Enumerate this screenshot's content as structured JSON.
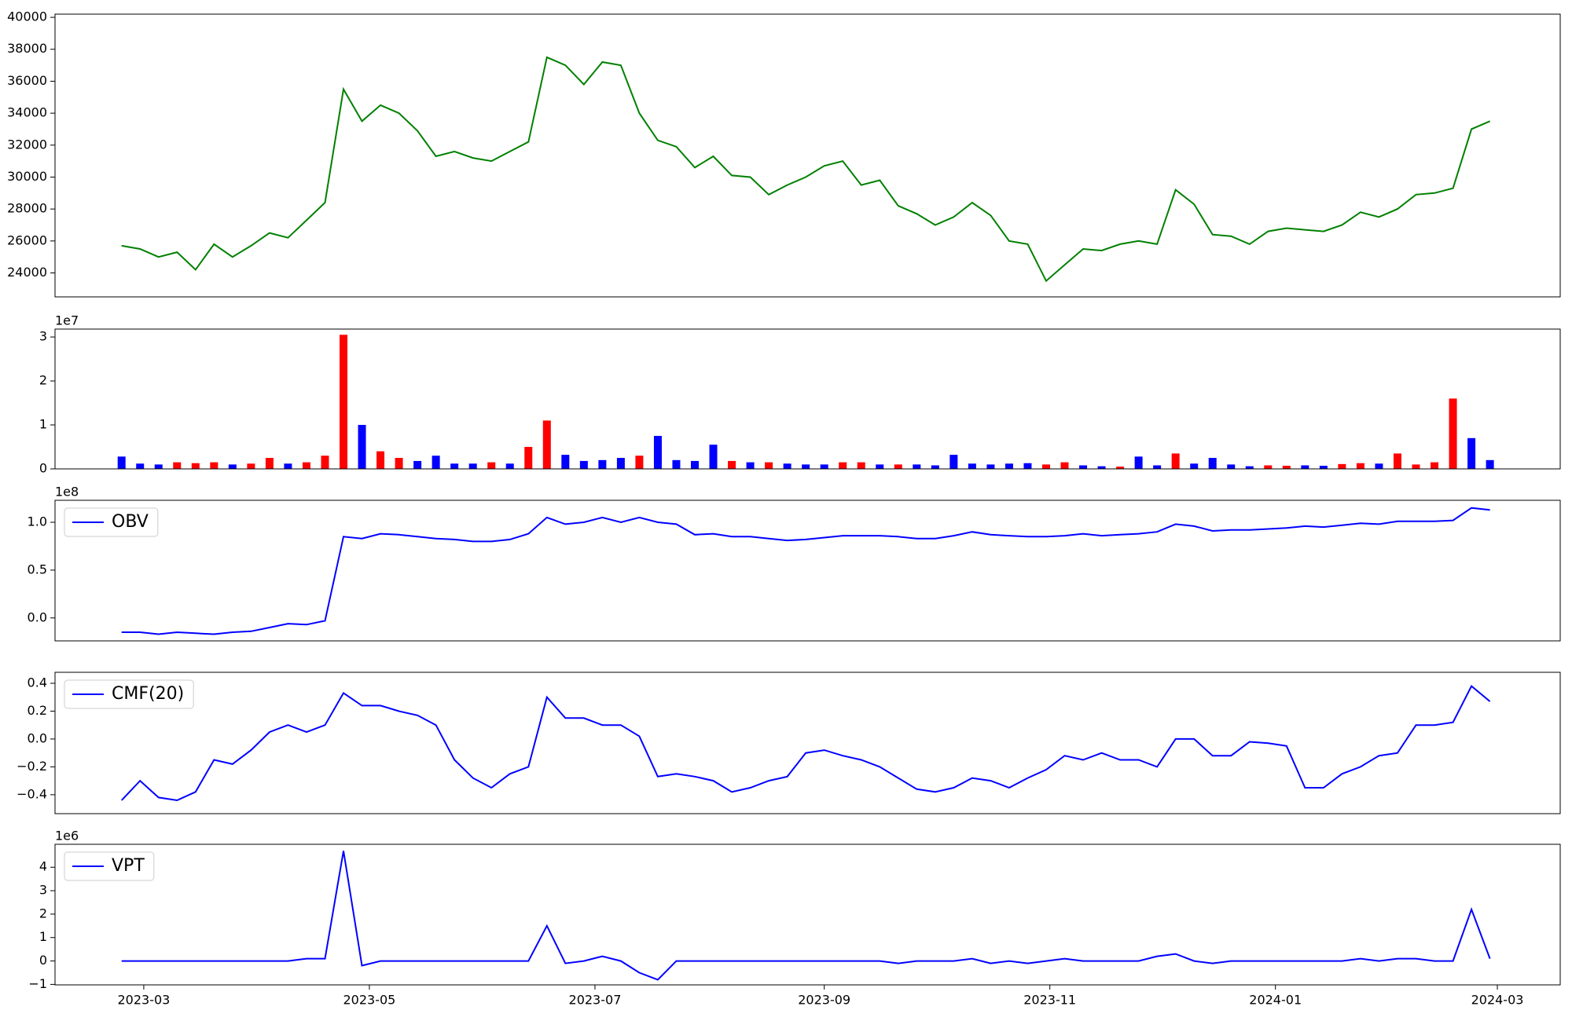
{
  "chart_data": [
    {
      "type": "line",
      "color": "#008000",
      "values": [
        25700,
        25500,
        25000,
        25300,
        24200,
        25800,
        25000,
        25700,
        26500,
        26200,
        27300,
        28400,
        35500,
        33500,
        34500,
        34000,
        32900,
        31300,
        31600,
        31200,
        31000,
        31600,
        32200,
        37500,
        37000,
        35800,
        37200,
        37000,
        34000,
        32300,
        31900,
        30600,
        31300,
        30100,
        30000,
        28900,
        29500,
        30000,
        30700,
        31000,
        29500,
        29800,
        28200,
        27700,
        27000,
        27500,
        28400,
        27600,
        26000,
        25800,
        23500,
        24500,
        25500,
        25400,
        25800,
        26000,
        25800,
        29200,
        28300,
        26400,
        26300,
        25800,
        26600,
        26800,
        26700,
        26600,
        27000,
        27800,
        27500,
        28000,
        28900,
        29000,
        29300,
        33000,
        33500
      ],
      "ylim": [
        22500,
        40200
      ],
      "yticks": [
        24000,
        26000,
        28000,
        30000,
        32000,
        34000,
        36000,
        38000,
        40000
      ]
    },
    {
      "type": "bar",
      "y_offset_label": "1e7",
      "values": [
        2800000,
        1200000,
        1000000,
        1500000,
        1300000,
        1500000,
        1000000,
        1200000,
        2500000,
        1200000,
        1500000,
        3000000,
        30500000,
        10000000,
        4000000,
        2500000,
        1800000,
        3000000,
        1200000,
        1200000,
        1500000,
        1200000,
        5000000,
        11000000,
        3200000,
        1800000,
        2000000,
        2500000,
        3000000,
        7500000,
        2000000,
        1800000,
        5500000,
        1800000,
        1500000,
        1500000,
        1200000,
        1000000,
        1000000,
        1500000,
        1500000,
        1000000,
        1000000,
        1000000,
        800000,
        3200000,
        1200000,
        1000000,
        1200000,
        1300000,
        1000000,
        1500000,
        800000,
        600000,
        500000,
        2800000,
        800000,
        3500000,
        1200000,
        2500000,
        1000000,
        600000,
        800000,
        700000,
        800000,
        700000,
        1100000,
        1300000,
        1200000,
        3500000,
        1000000,
        1500000,
        16000000,
        7000000,
        2000000
      ],
      "colors": [
        "blue",
        "blue",
        "blue",
        "red",
        "red",
        "red",
        "blue",
        "red",
        "red",
        "blue",
        "red",
        "red",
        "red",
        "blue",
        "red",
        "red",
        "blue",
        "blue",
        "blue",
        "blue",
        "red",
        "blue",
        "red",
        "red",
        "blue",
        "blue",
        "blue",
        "blue",
        "red",
        "blue",
        "blue",
        "blue",
        "blue",
        "red",
        "blue",
        "red",
        "blue",
        "blue",
        "blue",
        "red",
        "red",
        "blue",
        "red",
        "blue",
        "blue",
        "blue",
        "blue",
        "blue",
        "blue",
        "blue",
        "red",
        "red",
        "blue",
        "blue",
        "red",
        "blue",
        "blue",
        "red",
        "blue",
        "blue",
        "blue",
        "blue",
        "red",
        "red",
        "blue",
        "blue",
        "red",
        "red",
        "blue",
        "red",
        "red",
        "red",
        "red",
        "blue",
        "blue"
      ],
      "ylim": [
        0,
        31800000
      ],
      "yticks": [
        0,
        {
          "value": 10000000,
          "label": "1"
        },
        {
          "value": 20000000,
          "label": "2"
        },
        {
          "value": 30000000,
          "label": "3"
        }
      ]
    },
    {
      "type": "line",
      "y_offset_label": "1e8",
      "legend": "upper left",
      "series": [
        {
          "name": "OBV",
          "color": "#0000ff",
          "values": [
            -15000000,
            -15000000,
            -17000000,
            -15000000,
            -16000000,
            -17000000,
            -15000000,
            -14000000,
            -10000000,
            -6000000,
            -7000000,
            -3000000,
            85000000,
            83000000,
            88000000,
            87000000,
            85000000,
            83000000,
            82000000,
            80000000,
            80000000,
            82000000,
            88000000,
            105000000,
            98000000,
            100000000,
            105000000,
            100000000,
            105000000,
            100000000,
            98000000,
            87000000,
            88000000,
            85000000,
            85000000,
            83000000,
            81000000,
            82000000,
            84000000,
            86000000,
            86000000,
            86000000,
            85000000,
            83000000,
            83000000,
            86000000,
            90000000,
            87000000,
            86000000,
            85000000,
            85000000,
            86000000,
            88000000,
            86000000,
            87000000,
            88000000,
            90000000,
            98000000,
            96000000,
            91000000,
            92000000,
            92000000,
            93000000,
            94000000,
            96000000,
            95000000,
            97000000,
            99000000,
            98000000,
            101000000,
            101000000,
            101000000,
            102000000,
            115000000,
            113000000
          ]
        }
      ],
      "ylim": [
        -24000000,
        123000000
      ],
      "yticks": [
        {
          "value": 0,
          "label": "0.0"
        },
        {
          "value": 50000000,
          "label": "0.5"
        },
        {
          "value": 100000000,
          "label": "1.0"
        }
      ]
    },
    {
      "type": "line",
      "legend": "upper left",
      "series": [
        {
          "name": "CMF(20)",
          "color": "#0000ff",
          "values": [
            -0.44,
            -0.3,
            -0.42,
            -0.44,
            -0.38,
            -0.15,
            -0.18,
            -0.08,
            0.05,
            0.1,
            0.05,
            0.1,
            0.33,
            0.24,
            0.24,
            0.2,
            0.17,
            0.1,
            -0.15,
            -0.28,
            -0.35,
            -0.25,
            -0.2,
            0.3,
            0.15,
            0.15,
            0.1,
            0.1,
            0.02,
            -0.27,
            -0.25,
            -0.27,
            -0.3,
            -0.38,
            -0.35,
            -0.3,
            -0.27,
            -0.1,
            -0.08,
            -0.12,
            -0.15,
            -0.2,
            -0.28,
            -0.36,
            -0.38,
            -0.35,
            -0.28,
            -0.3,
            -0.35,
            -0.28,
            -0.22,
            -0.12,
            -0.15,
            -0.1,
            -0.15,
            -0.15,
            -0.2,
            0,
            0,
            -0.12,
            -0.12,
            -0.02,
            -0.03,
            -0.05,
            -0.35,
            -0.35,
            -0.25,
            -0.2,
            -0.12,
            -0.1,
            0.1,
            0.1,
            0.12,
            0.38,
            0.27
          ]
        }
      ],
      "ylim": [
        -0.536,
        0.479
      ],
      "yticks": [
        {
          "value": -0.4,
          "label": "−0.4"
        },
        {
          "value": -0.2,
          "label": "−0.2"
        },
        {
          "value": 0,
          "label": "0.0"
        },
        0.2,
        0.4
      ]
    },
    {
      "type": "line",
      "y_offset_label": "1e6",
      "legend": "upper left",
      "x": [
        19411,
        19416,
        19421,
        19426,
        19431,
        19436,
        19441,
        19446,
        19451,
        19456,
        19461,
        19466,
        19471,
        19476,
        19481,
        19486,
        19491,
        19496,
        19501,
        19506,
        19511,
        19516,
        19521,
        19526,
        19531,
        19536,
        19541,
        19546,
        19551,
        19556,
        19561,
        19566,
        19571,
        19576,
        19581,
        19586,
        19591,
        19596,
        19601,
        19606,
        19611,
        19616,
        19621,
        19626,
        19631,
        19636,
        19641,
        19646,
        19651,
        19656,
        19661,
        19666,
        19671,
        19676,
        19681,
        19686,
        19691,
        19696,
        19701,
        19706,
        19711,
        19716,
        19721,
        19726,
        19731,
        19736,
        19741,
        19746,
        19751,
        19756,
        19761,
        19766,
        19771,
        19776,
        19781
      ],
      "xlim": [
        19393,
        19800
      ],
      "xticks": [
        {
          "value": 19417,
          "label": "2023-03"
        },
        {
          "value": 19478,
          "label": "2023-05"
        },
        {
          "value": 19539,
          "label": "2023-07"
        },
        {
          "value": 19601,
          "label": "2023-09"
        },
        {
          "value": 19662,
          "label": "2023-11"
        },
        {
          "value": 19723,
          "label": "2024-01"
        },
        {
          "value": 19783,
          "label": "2024-03"
        }
      ],
      "series": [
        {
          "name": "VPT",
          "color": "#0000ff",
          "values": [
            0,
            0,
            0,
            0,
            0,
            0,
            0,
            0,
            0,
            0,
            100000,
            100000,
            4700000,
            -200000,
            0,
            0,
            0,
            0,
            0,
            0,
            0,
            0,
            0,
            1500000,
            -100000,
            0,
            200000,
            0,
            -500000,
            -800000,
            0,
            0,
            0,
            0,
            0,
            0,
            0,
            0,
            0,
            0,
            0,
            0,
            -100000,
            0,
            0,
            0,
            100000,
            -100000,
            0,
            -100000,
            0,
            100000,
            0,
            0,
            0,
            0,
            200000,
            300000,
            0,
            -100000,
            0,
            0,
            0,
            0,
            0,
            0,
            0,
            100000,
            0,
            100000,
            100000,
            0,
            0,
            2200000,
            100000
          ]
        }
      ],
      "ylim": [
        -1020000,
        4980000
      ],
      "yticks": [
        {
          "value": -1000000,
          "label": "−1"
        },
        0,
        {
          "value": 1000000,
          "label": "1"
        },
        {
          "value": 2000000,
          "label": "2"
        },
        {
          "value": 3000000,
          "label": "3"
        },
        {
          "value": 4000000,
          "label": "4"
        }
      ]
    }
  ]
}
